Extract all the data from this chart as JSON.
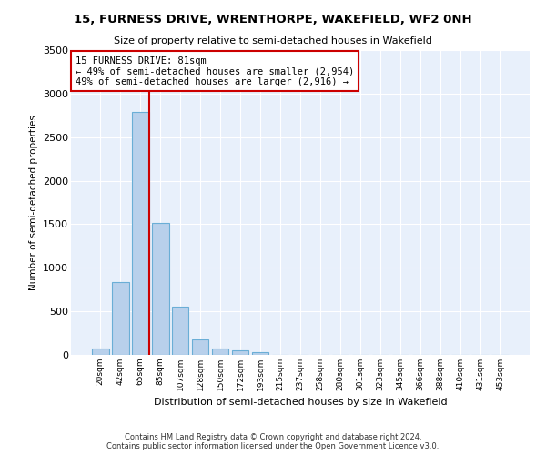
{
  "title1": "15, FURNESS DRIVE, WRENTHORPE, WAKEFIELD, WF2 0NH",
  "title2": "Size of property relative to semi-detached houses in Wakefield",
  "xlabel": "Distribution of semi-detached houses by size in Wakefield",
  "ylabel": "Number of semi-detached properties",
  "bar_color": "#b8d0eb",
  "bar_edge_color": "#6aaed6",
  "annotation_line_color": "#cc0000",
  "annotation_box_color": "#cc0000",
  "annotation_text": "15 FURNESS DRIVE: 81sqm\n← 49% of semi-detached houses are smaller (2,954)\n49% of semi-detached houses are larger (2,916) →",
  "property_sqm": 81,
  "categories": [
    "20sqm",
    "42sqm",
    "65sqm",
    "85sqm",
    "107sqm",
    "128sqm",
    "150sqm",
    "172sqm",
    "193sqm",
    "215sqm",
    "237sqm",
    "258sqm",
    "280sqm",
    "301sqm",
    "323sqm",
    "345sqm",
    "366sqm",
    "388sqm",
    "410sqm",
    "431sqm",
    "453sqm"
  ],
  "values": [
    75,
    840,
    2790,
    1510,
    555,
    175,
    75,
    50,
    30,
    0,
    0,
    0,
    0,
    0,
    0,
    0,
    0,
    0,
    0,
    0,
    0
  ],
  "ylim": [
    0,
    3500
  ],
  "yticks": [
    0,
    500,
    1000,
    1500,
    2000,
    2500,
    3000,
    3500
  ],
  "background_color": "#e8f0fb",
  "fig_background": "#ffffff",
  "grid_color": "#ffffff",
  "footer1": "Contains HM Land Registry data © Crown copyright and database right 2024.",
  "footer2": "Contains public sector information licensed under the Open Government Licence v3.0."
}
